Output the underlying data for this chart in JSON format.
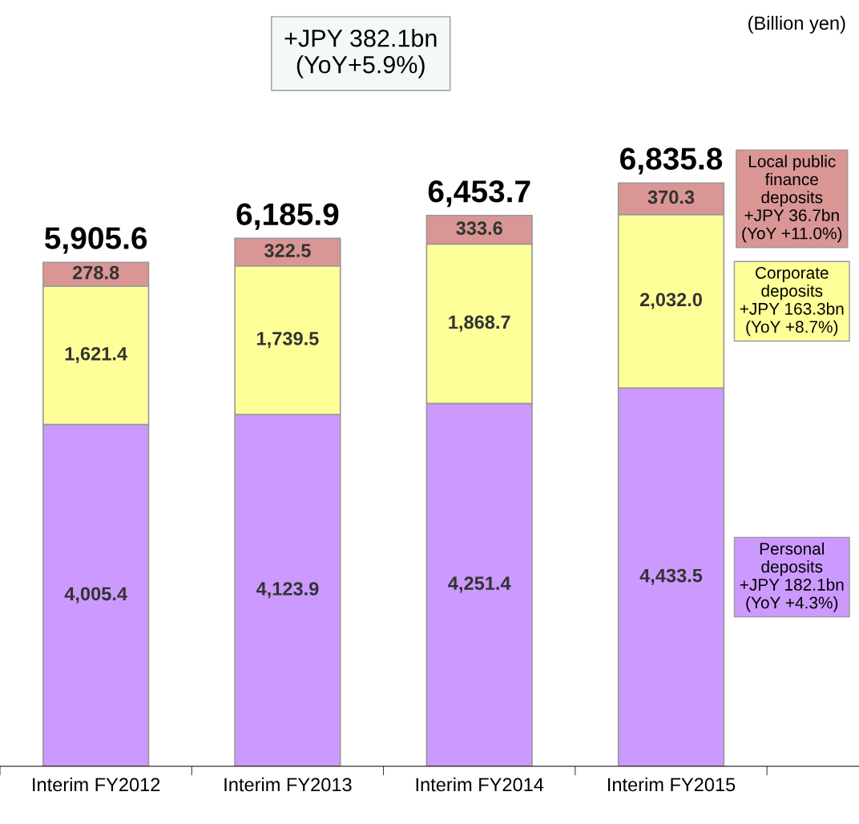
{
  "chart_data": {
    "type": "bar",
    "stacked": true,
    "legend": false,
    "grid": false,
    "categories": [
      "Interim FY2012",
      "Interim FY2013",
      "Interim FY2014",
      "Interim FY2015"
    ],
    "series": [
      {
        "name": "Personal deposits",
        "color": "#cc99ff",
        "values": [
          4005.4,
          4123.9,
          4251.4,
          4433.5
        ],
        "value_labels": [
          "4,005.4",
          "4,123.9",
          "4,251.4",
          "4,433.5"
        ]
      },
      {
        "name": "Corporate deposits",
        "color": "#ffff99",
        "values": [
          1621.4,
          1739.5,
          1868.7,
          2032.0
        ],
        "value_labels": [
          "1,621.4",
          "1,739.5",
          "1,868.7",
          "2,032.0"
        ]
      },
      {
        "name": "Local public finance deposits",
        "color": "#d99694",
        "values": [
          278.8,
          322.5,
          333.6,
          370.3
        ],
        "value_labels": [
          "278.8",
          "322.5",
          "333.6",
          "370.3"
        ]
      }
    ],
    "totals": [
      "5,905.6",
      "6,185.9",
      "6,453.7",
      "6,835.8"
    ],
    "annotations": [
      "+JPY 382.1bn\n(YoY+5.9%)",
      "(Billion yen)",
      "+JPY 182.1bn\n(YoY +4.3%)",
      "+JPY 163.3bn\n(YoY +8.7%)",
      "+JPY 36.7bn\n(YoY +11.0%)"
    ]
  }
}
